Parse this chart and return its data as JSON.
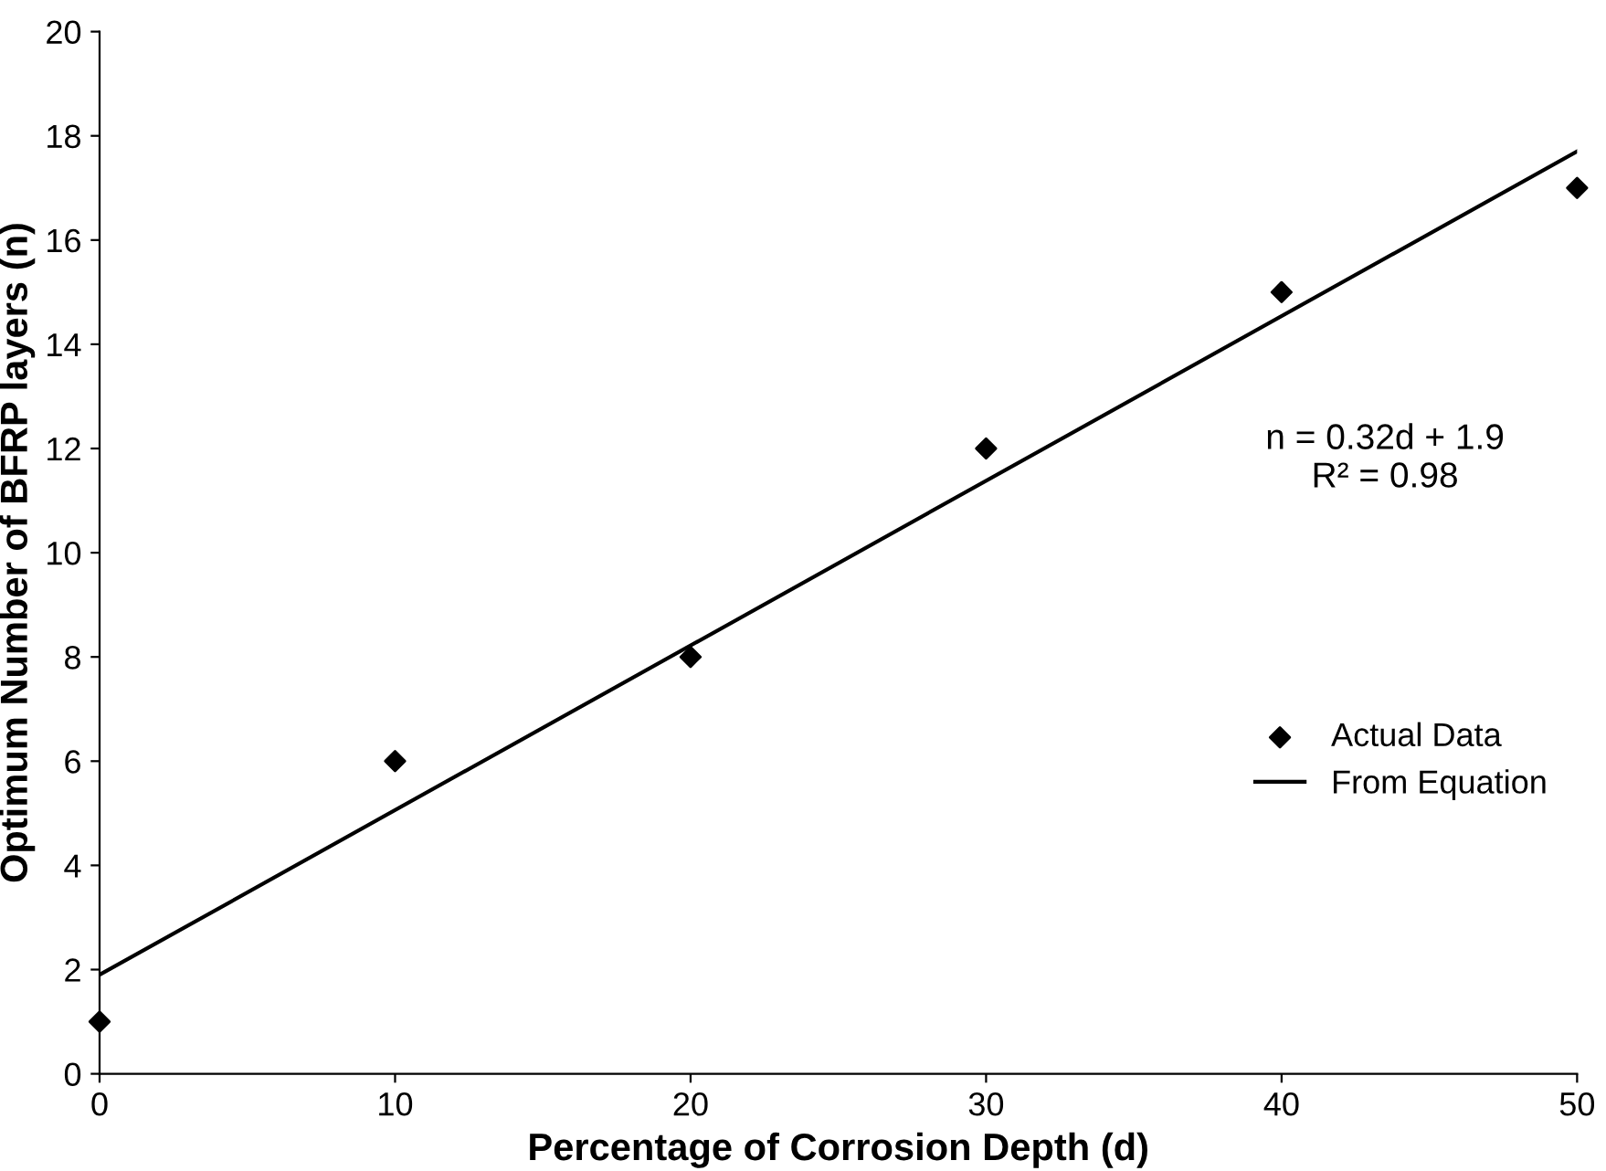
{
  "chart_data": {
    "type": "scatter",
    "xlabel": "Percentage of Corrosion Depth (d)",
    "ylabel": "Optimum Number of BFRP layers (n)",
    "series": [
      {
        "name": "Actual Data",
        "color": "#000000",
        "marker": "diamond",
        "x": [
          0,
          10,
          20,
          30,
          40,
          50
        ],
        "values": [
          1,
          6,
          8,
          12,
          15,
          17
        ]
      },
      {
        "name": "From Equation",
        "type": "line",
        "color": "#000000",
        "marker": "none",
        "line_style": "solid",
        "x": [
          0,
          50
        ],
        "values": [
          1.9,
          17.7
        ]
      }
    ],
    "xlim": [
      0,
      50
    ],
    "xticks": [
      0,
      10,
      20,
      30,
      40,
      50
    ],
    "ylim": [
      0,
      20
    ],
    "yticks": [
      0,
      2,
      4,
      6,
      8,
      10,
      12,
      14,
      16,
      18,
      20
    ],
    "grid": false,
    "legend": "right",
    "annotations": [
      "n = 0.32d + 1.9\nR² = 0.98"
    ]
  }
}
